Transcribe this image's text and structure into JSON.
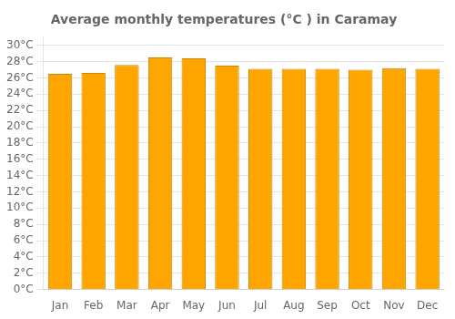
{
  "chart_data": {
    "type": "bar",
    "title": "Average monthly temperatures (°C ) in Caramay",
    "categories": [
      "Jan",
      "Feb",
      "Mar",
      "Apr",
      "May",
      "Jun",
      "Jul",
      "Aug",
      "Sep",
      "Oct",
      "Nov",
      "Dec"
    ],
    "values": [
      26.5,
      26.6,
      27.6,
      28.5,
      28.4,
      27.5,
      27.1,
      27.1,
      27.1,
      27.0,
      27.2,
      27.1
    ],
    "color": "#FFA500",
    "ylim": [
      0,
      31
    ],
    "yticks": [
      {
        "value": 0,
        "label": "0°C"
      },
      {
        "value": 2,
        "label": "2°C"
      },
      {
        "value": 4,
        "label": "4°C"
      },
      {
        "value": 6,
        "label": "6°C"
      },
      {
        "value": 8,
        "label": "8°C"
      },
      {
        "value": 10,
        "label": "10°C"
      },
      {
        "value": 12,
        "label": "12°C"
      },
      {
        "value": 14,
        "label": "14°C"
      },
      {
        "value": 16,
        "label": "16°C"
      },
      {
        "value": 18,
        "label": "18°C"
      },
      {
        "value": 20,
        "label": "20°C"
      },
      {
        "value": 22,
        "label": "22°C"
      },
      {
        "value": 24,
        "label": "24°C"
      },
      {
        "value": 26,
        "label": "26°C"
      },
      {
        "value": 28,
        "label": "28°C"
      },
      {
        "value": 30,
        "label": "30°C"
      }
    ],
    "grid": true
  }
}
